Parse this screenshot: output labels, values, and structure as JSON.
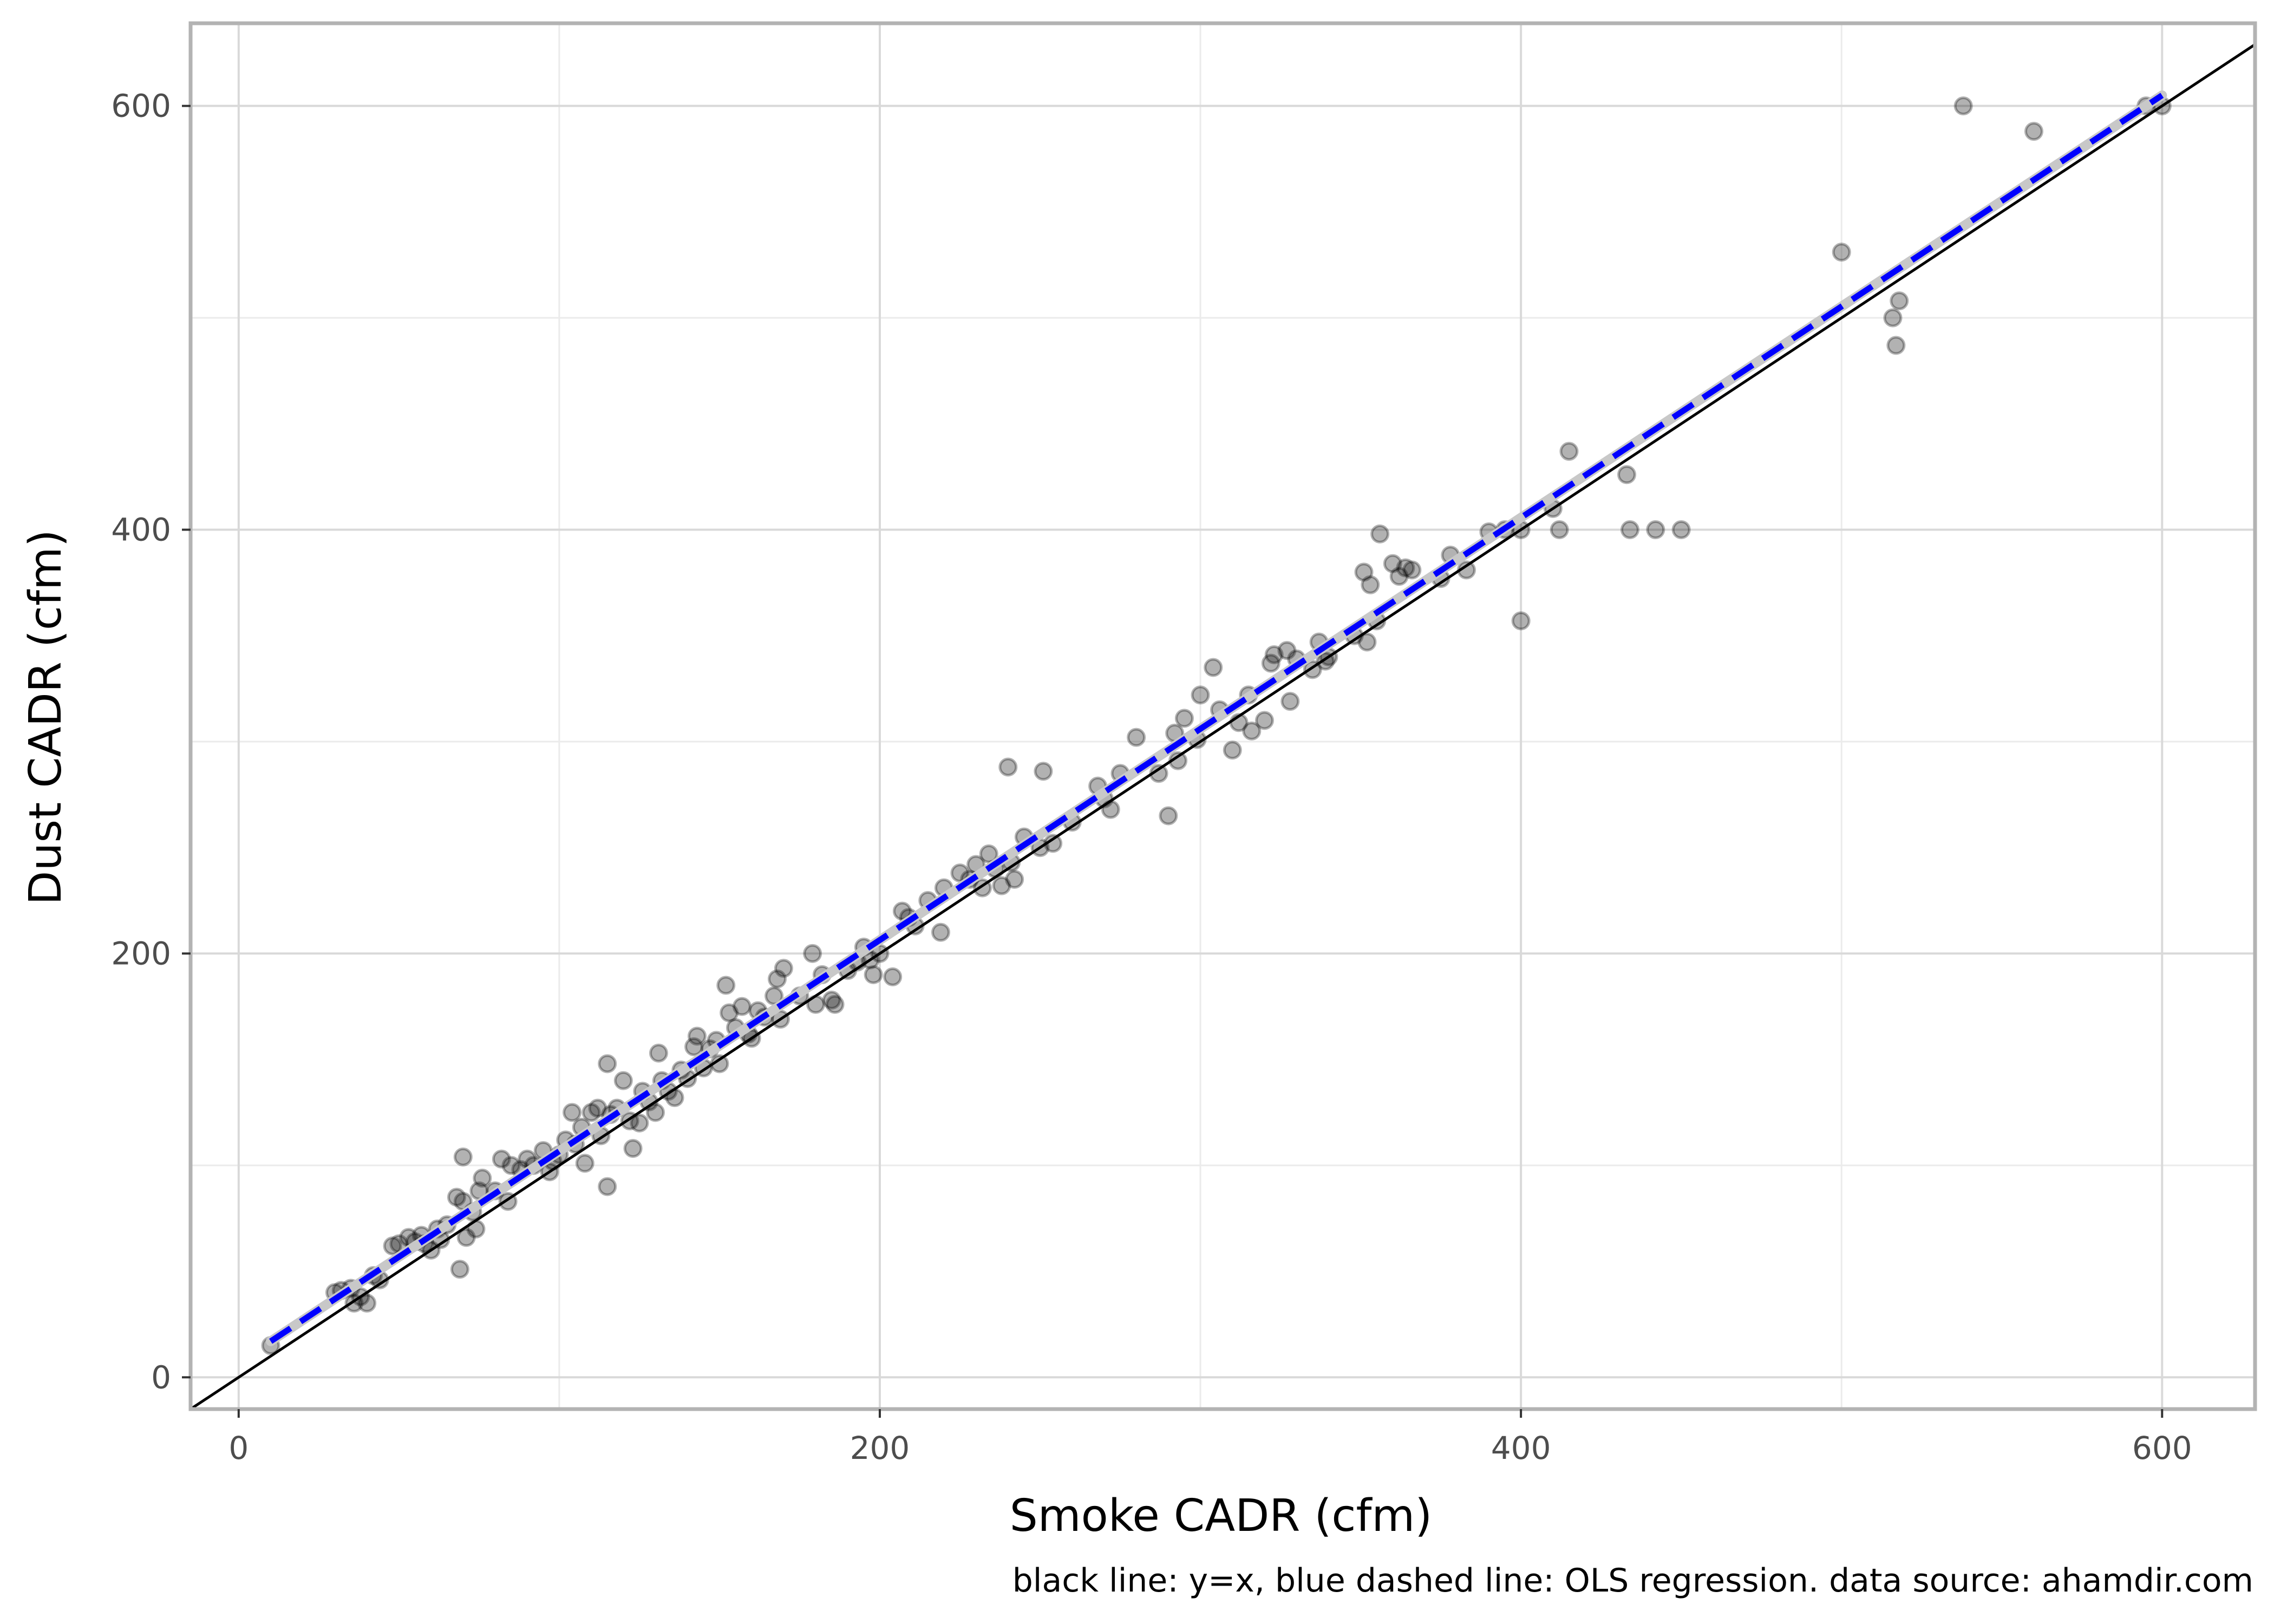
{
  "chart_data": {
    "type": "scatter",
    "title": "",
    "xlabel": "Smoke CADR (cfm)",
    "ylabel": "Dust CADR (cfm)",
    "caption": "black line: y=x, blue dashed line: OLS regression. data source: ahamdir.com",
    "xlim": [
      -15,
      629
    ],
    "ylim": [
      -15,
      639
    ],
    "xticks": [
      0,
      200,
      400,
      600
    ],
    "yticks": [
      0,
      200,
      400,
      600
    ],
    "xtick_labels": [
      "0",
      "200",
      "400",
      "600"
    ],
    "ytick_labels": [
      "0",
      "200",
      "400",
      "600"
    ],
    "grid": true,
    "legend": "none",
    "reference_line": {
      "label": "y=x",
      "slope": 1,
      "intercept": 0,
      "color": "#000000"
    },
    "regression_line": {
      "label": "OLS regression",
      "x": [
        10,
        600
      ],
      "y": [
        17,
        605
      ],
      "color": "#0000ff",
      "style": "dashed"
    },
    "point_color": "#000000",
    "point_opacity": 0.3,
    "points": [
      [
        10,
        15
      ],
      [
        30,
        40
      ],
      [
        32,
        41
      ],
      [
        35,
        42
      ],
      [
        36,
        35
      ],
      [
        38,
        38
      ],
      [
        40,
        35
      ],
      [
        42,
        48
      ],
      [
        44,
        46
      ],
      [
        48,
        62
      ],
      [
        50,
        63
      ],
      [
        53,
        66
      ],
      [
        55,
        64
      ],
      [
        57,
        67
      ],
      [
        58,
        63
      ],
      [
        60,
        60
      ],
      [
        62,
        70
      ],
      [
        63,
        65
      ],
      [
        65,
        72
      ],
      [
        68,
        85
      ],
      [
        69,
        51
      ],
      [
        70,
        104
      ],
      [
        70,
        83
      ],
      [
        71,
        66
      ],
      [
        73,
        78
      ],
      [
        74,
        70
      ],
      [
        75,
        88
      ],
      [
        76,
        94
      ],
      [
        80,
        88
      ],
      [
        82,
        103
      ],
      [
        84,
        83
      ],
      [
        85,
        100
      ],
      [
        88,
        98
      ],
      [
        90,
        103
      ],
      [
        92,
        100
      ],
      [
        95,
        107
      ],
      [
        97,
        97
      ],
      [
        98,
        102
      ],
      [
        100,
        105
      ],
      [
        102,
        112
      ],
      [
        104,
        125
      ],
      [
        105,
        110
      ],
      [
        107,
        118
      ],
      [
        108,
        101
      ],
      [
        110,
        125
      ],
      [
        112,
        127
      ],
      [
        113,
        114
      ],
      [
        115,
        148
      ],
      [
        115,
        90
      ],
      [
        116,
        124
      ],
      [
        118,
        127
      ],
      [
        120,
        140
      ],
      [
        122,
        121
      ],
      [
        123,
        108
      ],
      [
        125,
        120
      ],
      [
        126,
        135
      ],
      [
        128,
        130
      ],
      [
        130,
        125
      ],
      [
        131,
        153
      ],
      [
        132,
        140
      ],
      [
        134,
        135
      ],
      [
        136,
        132
      ],
      [
        138,
        145
      ],
      [
        140,
        141
      ],
      [
        142,
        156
      ],
      [
        143,
        161
      ],
      [
        145,
        146
      ],
      [
        147,
        155
      ],
      [
        149,
        159
      ],
      [
        150,
        148
      ],
      [
        152,
        185
      ],
      [
        153,
        172
      ],
      [
        155,
        165
      ],
      [
        157,
        175
      ],
      [
        159,
        162
      ],
      [
        160,
        160
      ],
      [
        162,
        173
      ],
      [
        164,
        170
      ],
      [
        167,
        180
      ],
      [
        168,
        188
      ],
      [
        169,
        169
      ],
      [
        170,
        193
      ],
      [
        175,
        180
      ],
      [
        179,
        200
      ],
      [
        180,
        176
      ],
      [
        182,
        190
      ],
      [
        185,
        178
      ],
      [
        186,
        176
      ],
      [
        190,
        192
      ],
      [
        193,
        196
      ],
      [
        195,
        203
      ],
      [
        197,
        197
      ],
      [
        198,
        190
      ],
      [
        200,
        200
      ],
      [
        204,
        189
      ],
      [
        207,
        220
      ],
      [
        209,
        217
      ],
      [
        211,
        213
      ],
      [
        215,
        225
      ],
      [
        219,
        210
      ],
      [
        220,
        231
      ],
      [
        225,
        238
      ],
      [
        228,
        235
      ],
      [
        230,
        242
      ],
      [
        232,
        231
      ],
      [
        234,
        247
      ],
      [
        236,
        240
      ],
      [
        238,
        232
      ],
      [
        240,
        288
      ],
      [
        241,
        243
      ],
      [
        242,
        235
      ],
      [
        245,
        255
      ],
      [
        250,
        250
      ],
      [
        251,
        286
      ],
      [
        254,
        252
      ],
      [
        260,
        262
      ],
      [
        268,
        279
      ],
      [
        270,
        273
      ],
      [
        272,
        268
      ],
      [
        275,
        285
      ],
      [
        280,
        302
      ],
      [
        287,
        285
      ],
      [
        290,
        265
      ],
      [
        292,
        304
      ],
      [
        293,
        291
      ],
      [
        295,
        311
      ],
      [
        299,
        301
      ],
      [
        300,
        322
      ],
      [
        304,
        335
      ],
      [
        306,
        315
      ],
      [
        310,
        296
      ],
      [
        312,
        309
      ],
      [
        315,
        322
      ],
      [
        316,
        305
      ],
      [
        320,
        310
      ],
      [
        322,
        337
      ],
      [
        323,
        341
      ],
      [
        327,
        343
      ],
      [
        328,
        319
      ],
      [
        330,
        339
      ],
      [
        335,
        334
      ],
      [
        337,
        347
      ],
      [
        339,
        338
      ],
      [
        340,
        340
      ],
      [
        348,
        350
      ],
      [
        351,
        380
      ],
      [
        352,
        347
      ],
      [
        353,
        374
      ],
      [
        355,
        357
      ],
      [
        356,
        398
      ],
      [
        360,
        384
      ],
      [
        362,
        378
      ],
      [
        364,
        382
      ],
      [
        366,
        381
      ],
      [
        375,
        377
      ],
      [
        378,
        388
      ],
      [
        383,
        381
      ],
      [
        390,
        399
      ],
      [
        395,
        400
      ],
      [
        400,
        357
      ],
      [
        400,
        400
      ],
      [
        410,
        410
      ],
      [
        412,
        400
      ],
      [
        415,
        437
      ],
      [
        433,
        426
      ],
      [
        434,
        400
      ],
      [
        442,
        400
      ],
      [
        450,
        400
      ],
      [
        500,
        531
      ],
      [
        516,
        500
      ],
      [
        517,
        487
      ],
      [
        518,
        508
      ],
      [
        538,
        600
      ],
      [
        560,
        588
      ],
      [
        595,
        600
      ],
      [
        600,
        600
      ]
    ]
  }
}
